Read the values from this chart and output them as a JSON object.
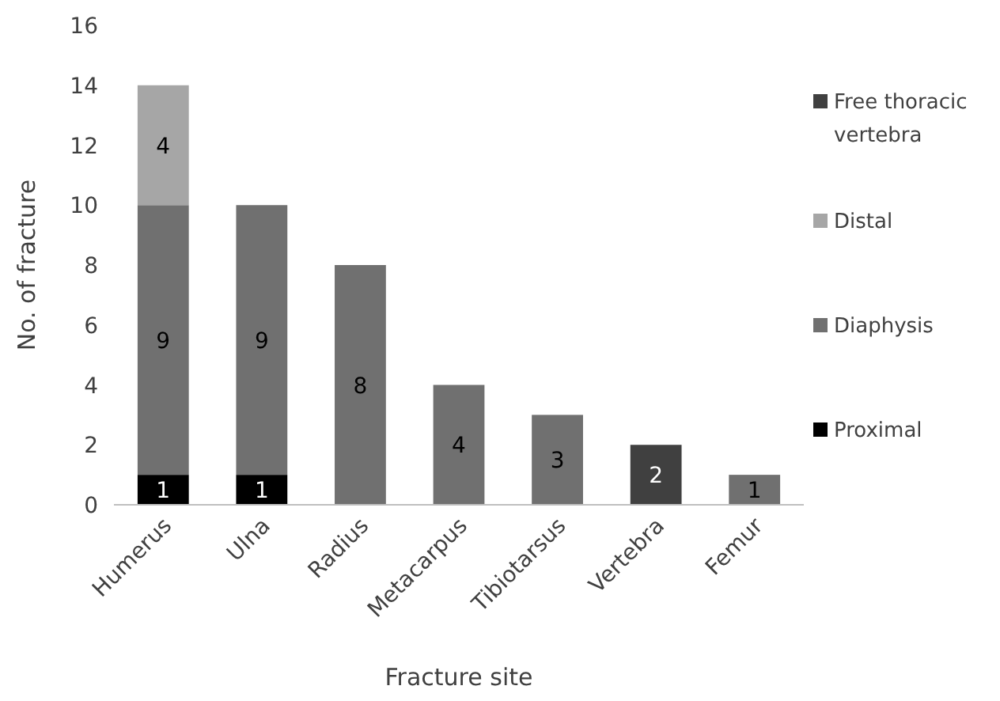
{
  "chart_data": {
    "type": "bar",
    "stacked": true,
    "xlabel": "Fracture site",
    "ylabel": "No. of fracture",
    "categories": [
      "Humerus",
      "Ulna",
      "Radius",
      "Metacarpus",
      "Tibiotarsus",
      "Vertebra",
      "Femur"
    ],
    "series": [
      {
        "name": "Proximal",
        "color": "#000000",
        "values": [
          1,
          1,
          null,
          null,
          null,
          null,
          null
        ]
      },
      {
        "name": "Diaphysis",
        "color": "#707070",
        "values": [
          9,
          9,
          8,
          4,
          3,
          null,
          1
        ]
      },
      {
        "name": "Distal",
        "color": "#a6a6a6",
        "values": [
          4,
          null,
          null,
          null,
          null,
          null,
          null
        ]
      },
      {
        "name": "Free thoracic vertebra",
        "color": "#404040",
        "values": [
          null,
          null,
          null,
          null,
          null,
          2,
          null
        ]
      }
    ],
    "ylim": [
      0,
      16
    ],
    "yticks": [
      0,
      2,
      4,
      6,
      8,
      10,
      12,
      14,
      16
    ],
    "data_labels": true,
    "legend": "right",
    "grid": false
  }
}
